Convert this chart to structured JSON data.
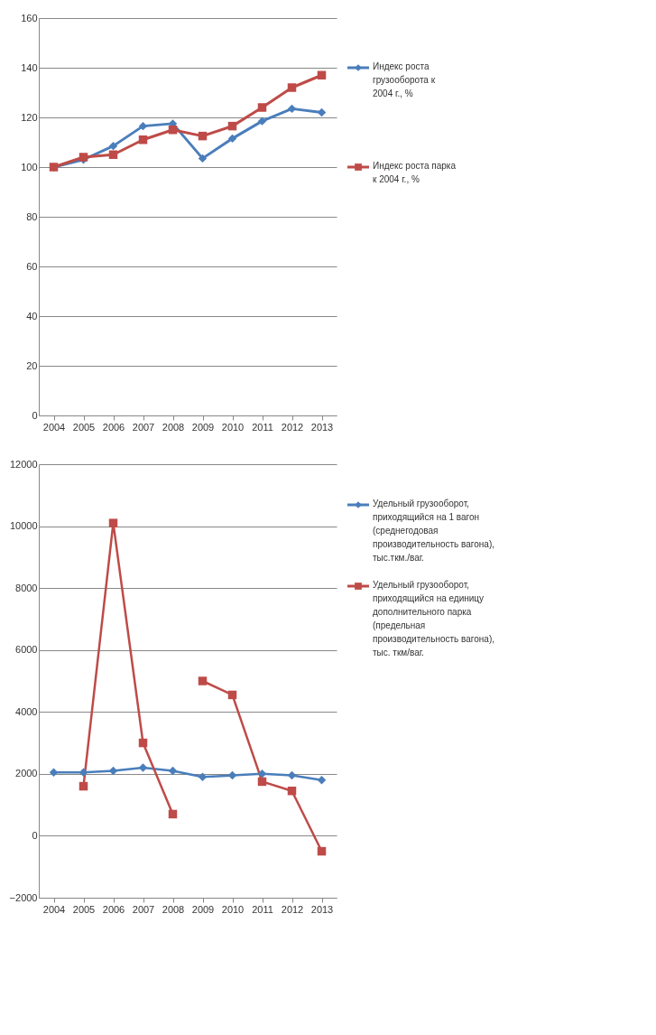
{
  "chart_data": [
    {
      "type": "line",
      "categories": [
        "2004",
        "2005",
        "2006",
        "2007",
        "2008",
        "2009",
        "2010",
        "2011",
        "2012",
        "2013"
      ],
      "ylim": [
        0,
        160
      ],
      "yticks": [
        0,
        20,
        40,
        60,
        80,
        100,
        120,
        140,
        160
      ],
      "grid": "y",
      "legend": "right",
      "series": [
        {
          "name": "Индекс роста грузооборота к 2004 г., %",
          "color": "#4a7ebb",
          "marker": "diamond",
          "values": [
            100,
            103,
            108.5,
            116.5,
            117.5,
            103.5,
            111.5,
            118.5,
            123.5,
            122
          ]
        },
        {
          "name": "Индекс роста парка к 2004 г., %",
          "color": "#be4b48",
          "marker": "square",
          "values": [
            100,
            104,
            105,
            111,
            115,
            112.5,
            116.5,
            124,
            132,
            137
          ]
        }
      ]
    },
    {
      "type": "line",
      "categories": [
        "2004",
        "2005",
        "2006",
        "2007",
        "2008",
        "2009",
        "2010",
        "2011",
        "2012",
        "2013"
      ],
      "ylim": [
        -2000,
        12000
      ],
      "yticks": [
        -2000,
        0,
        2000,
        4000,
        6000,
        8000,
        10000,
        12000
      ],
      "grid": "y",
      "legend": "right",
      "series": [
        {
          "name": "Удельный грузооборот, приходящийся на 1 вагон (среднегодовая производительность вагона), тыс.ткм./ваг.",
          "color": "#4a7ebb",
          "marker": "diamond",
          "values": [
            2050,
            2050,
            2100,
            2200,
            2100,
            1900,
            1950,
            2000,
            1950,
            1800
          ]
        },
        {
          "name": "Удельный грузооборот, приходящийся на единицу дополнительного парка (предельная производительность вагона), тыс. ткм/ваг.",
          "color": "#be4b48",
          "marker": "square",
          "values": [
            null,
            1600,
            10100,
            3000,
            700,
            null,
            null,
            null,
            null,
            null
          ]
        },
        {
          "color": "#be4b48",
          "marker": "square",
          "values": [
            null,
            null,
            null,
            null,
            null,
            5000,
            4550,
            1750,
            1450,
            -500
          ]
        }
      ]
    }
  ]
}
